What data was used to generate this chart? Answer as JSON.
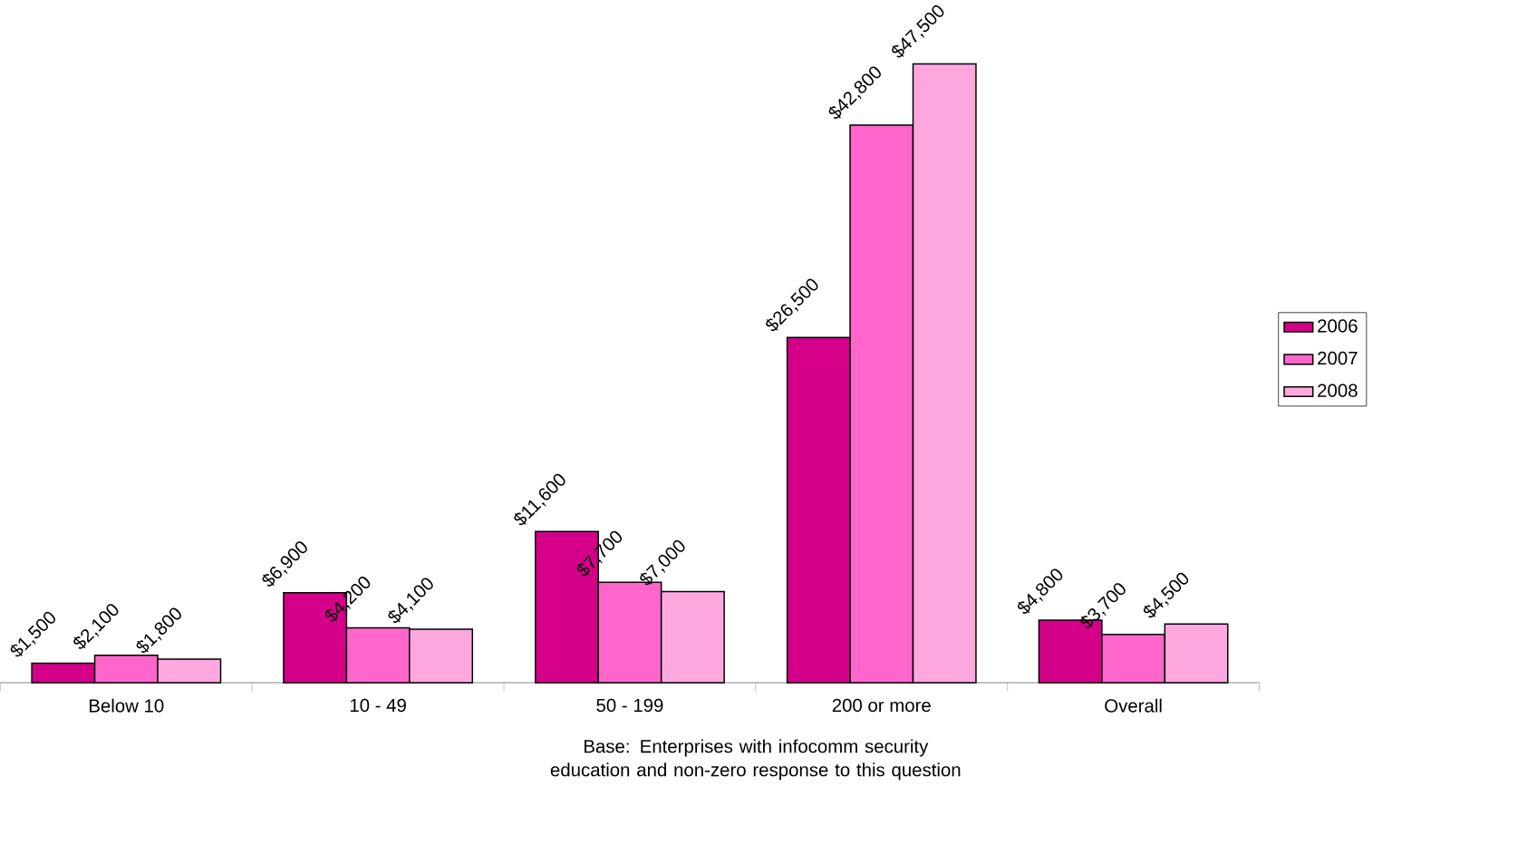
{
  "chart_data": {
    "type": "bar",
    "categories": [
      "Below 10",
      "10 - 49",
      "50 - 199",
      "200 or more",
      "Overall"
    ],
    "series": [
      {
        "name": "2006",
        "color": "#d4008a",
        "values": [
          1500,
          6900,
          11600,
          26500,
          4800
        ],
        "value_labels": [
          "$1,500",
          "$6,900",
          "$11,600",
          "$26,500",
          "$4,800"
        ]
      },
      {
        "name": "2007",
        "color": "#ff66cc",
        "values": [
          2100,
          4200,
          7700,
          42800,
          3700
        ],
        "value_labels": [
          "$2,100",
          "$4,200",
          "$7,700",
          "$42,800",
          "$3,700"
        ]
      },
      {
        "name": "2008",
        "color": "#ffa8e0",
        "values": [
          1800,
          4100,
          7000,
          47500,
          4500
        ],
        "value_labels": [
          "$1,800",
          "$4,100",
          "$7,000",
          "$47,500",
          "$4,500"
        ]
      }
    ],
    "legend": "right",
    "annotations": [
      "Base: Enterprises with infocomm security education and non-zero response to this question"
    ]
  }
}
